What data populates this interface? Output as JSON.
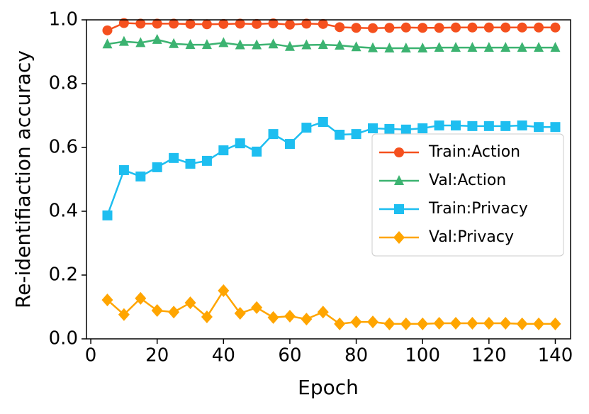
{
  "chart_data": {
    "type": "line",
    "xlabel": "Epoch",
    "ylabel": "Re-identifiaction accuracy",
    "x": [
      5,
      10,
      15,
      20,
      25,
      30,
      35,
      40,
      45,
      50,
      55,
      60,
      65,
      70,
      75,
      80,
      85,
      90,
      95,
      100,
      105,
      110,
      115,
      120,
      125,
      130,
      135,
      140
    ],
    "xlim": [
      -1.3,
      144.6
    ],
    "xticks": [
      0,
      20,
      40,
      60,
      80,
      100,
      120,
      140
    ],
    "ylim": [
      0,
      1
    ],
    "yticks": [
      {
        "value": 0,
        "label": "0.0"
      },
      0.2,
      0.4,
      0.6,
      0.8,
      {
        "value": 1,
        "label": "1.0"
      }
    ],
    "legend": "center right",
    "series": [
      {
        "name": "Train:Action",
        "color": "#f5501e",
        "marker": "circle",
        "values": [
          0.967,
          0.99,
          0.988,
          0.988,
          0.988,
          0.987,
          0.986,
          0.987,
          0.988,
          0.987,
          0.989,
          0.985,
          0.988,
          0.987,
          0.977,
          0.975,
          0.974,
          0.975,
          0.976,
          0.975,
          0.975,
          0.976,
          0.976,
          0.976,
          0.976,
          0.976,
          0.976,
          0.976
        ]
      },
      {
        "name": "Val:Action",
        "color": "#3cb371",
        "marker": "triangle",
        "values": [
          0.924,
          0.932,
          0.928,
          0.938,
          0.925,
          0.922,
          0.922,
          0.928,
          0.921,
          0.921,
          0.924,
          0.916,
          0.921,
          0.922,
          0.92,
          0.915,
          0.912,
          0.911,
          0.911,
          0.911,
          0.913,
          0.913,
          0.913,
          0.913,
          0.913,
          0.913,
          0.913,
          0.913
        ]
      },
      {
        "name": "Train:Privacy",
        "color": "#1ebef0",
        "marker": "square",
        "values": [
          0.387,
          0.529,
          0.509,
          0.538,
          0.567,
          0.549,
          0.558,
          0.591,
          0.613,
          0.587,
          0.642,
          0.611,
          0.662,
          0.68,
          0.64,
          0.642,
          0.66,
          0.658,
          0.656,
          0.66,
          0.669,
          0.669,
          0.667,
          0.667,
          0.667,
          0.669,
          0.664,
          0.664
        ]
      },
      {
        "name": "Val:Privacy",
        "color": "#ffa500",
        "marker": "diamond",
        "values": [
          0.122,
          0.076,
          0.127,
          0.089,
          0.084,
          0.113,
          0.069,
          0.151,
          0.08,
          0.098,
          0.067,
          0.071,
          0.062,
          0.084,
          0.047,
          0.053,
          0.053,
          0.047,
          0.047,
          0.047,
          0.049,
          0.049,
          0.049,
          0.049,
          0.049,
          0.047,
          0.047,
          0.047
        ]
      }
    ]
  }
}
